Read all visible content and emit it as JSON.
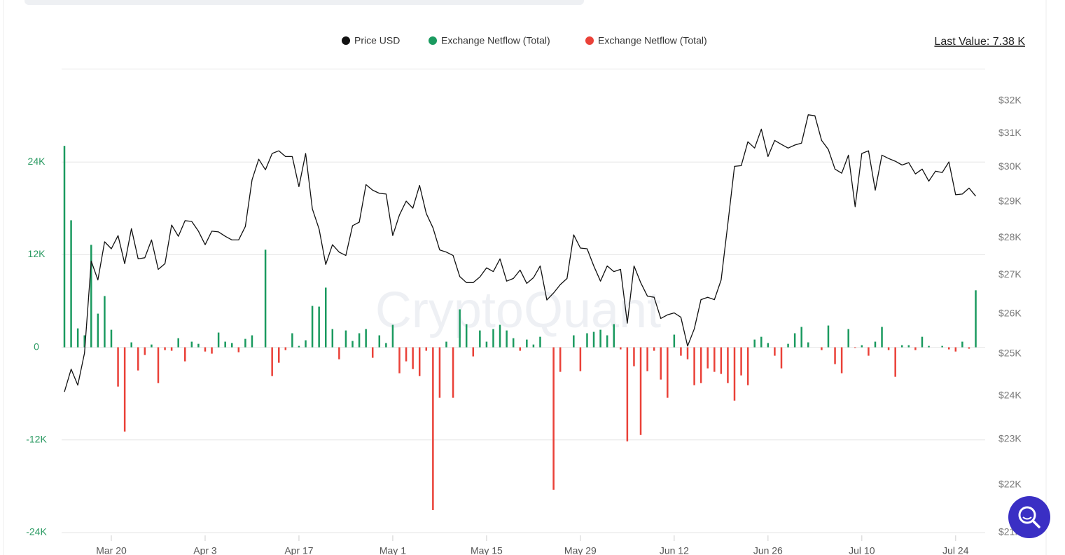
{
  "chart_data": {
    "type": "bar",
    "annotation": "Last Value: 7.38 K",
    "watermark": "CryptoQuant",
    "categories": [
      null,
      null,
      null,
      null,
      null,
      null,
      null,
      "Mar 20",
      null,
      null,
      null,
      null,
      null,
      null,
      null,
      null,
      null,
      null,
      null,
      null,
      null,
      "Apr 3",
      null,
      null,
      null,
      null,
      null,
      null,
      null,
      null,
      null,
      null,
      null,
      null,
      null,
      "Apr 17",
      null,
      null,
      null,
      null,
      null,
      null,
      null,
      null,
      null,
      null,
      null,
      null,
      null,
      "May 1",
      null,
      null,
      null,
      null,
      null,
      null,
      null,
      null,
      null,
      null,
      null,
      null,
      null,
      "May 15",
      null,
      null,
      null,
      null,
      null,
      null,
      null,
      null,
      null,
      null,
      null,
      null,
      null,
      "May 29",
      null,
      null,
      null,
      null,
      null,
      null,
      null,
      null,
      null,
      null,
      null,
      null,
      null,
      "Jun 12",
      null,
      null,
      null,
      null,
      null,
      null,
      null,
      null,
      null,
      null,
      null,
      null,
      null,
      "Jun 26",
      null,
      null,
      null,
      null,
      null,
      null,
      null,
      null,
      null,
      null,
      null,
      null,
      null,
      "Jul 10",
      null,
      null,
      null,
      null,
      null,
      null,
      null,
      null,
      null,
      null,
      null,
      null,
      null,
      "Jul 24",
      null,
      null,
      null
    ],
    "series": [
      {
        "name": "Price USD",
        "type": "line",
        "axis": "y2",
        "color": "#111111",
        "values": [
          24090,
          24630,
          24250,
          25020,
          27370,
          26870,
          27890,
          27700,
          28060,
          27300,
          28250,
          27430,
          27460,
          27940,
          27150,
          27300,
          28350,
          28040,
          28470,
          28450,
          28180,
          27810,
          28180,
          28160,
          28040,
          27940,
          27940,
          28310,
          29630,
          30230,
          29920,
          30400,
          30480,
          30310,
          30310,
          29430,
          30400,
          28800,
          28240,
          27280,
          27810,
          27610,
          27520,
          28330,
          28430,
          29490,
          29330,
          29240,
          29220,
          28060,
          28630,
          29020,
          28820,
          29470,
          28670,
          28270,
          27670,
          27610,
          27520,
          26960,
          26800,
          26800,
          26950,
          27190,
          27090,
          27430,
          26840,
          26910,
          27130,
          26780,
          26930,
          27240,
          26350,
          26530,
          26750,
          26910,
          28080,
          27720,
          27700,
          27240,
          26840,
          27240,
          27090,
          27150,
          25760,
          27240,
          26800,
          26450,
          26420,
          25880,
          25970,
          26020,
          25910,
          25190,
          25620,
          26360,
          26420,
          26360,
          26870,
          28370,
          30020,
          30040,
          30750,
          30560,
          31130,
          30310,
          30790,
          30670,
          30560,
          30650,
          30710,
          31570,
          31540,
          30790,
          30520,
          29940,
          29820,
          30350,
          28860,
          30400,
          30480,
          29330,
          30350,
          30250,
          30170,
          30060,
          30130,
          29800,
          29940,
          29590,
          29880,
          29840,
          30150,
          29200,
          29220,
          29390,
          29160
        ]
      },
      {
        "name": "Exchange Netflow (Total)",
        "color": "#1a9a5f",
        "values": [
          26090,
          16450,
          2450,
          1550,
          13270,
          4360,
          6640,
          2270,
          null,
          null,
          640,
          null,
          null,
          360,
          null,
          null,
          null,
          1180,
          null,
          730,
          450,
          null,
          null,
          1910,
          730,
          550,
          null,
          1090,
          1550,
          null,
          12640,
          null,
          null,
          null,
          1820,
          180,
          910,
          5360,
          5270,
          7730,
          2360,
          null,
          2180,
          820,
          1820,
          2360,
          null,
          1550,
          550,
          2910,
          null,
          null,
          null,
          null,
          null,
          null,
          null,
          730,
          null,
          4910,
          3000,
          null,
          2180,
          730,
          2360,
          2910,
          2180,
          1180,
          null,
          1000,
          360,
          1360,
          null,
          null,
          null,
          null,
          1550,
          null,
          1820,
          2000,
          2270,
          1550,
          3000,
          null,
          null,
          null,
          null,
          null,
          null,
          null,
          null,
          1640,
          null,
          null,
          null,
          null,
          null,
          null,
          null,
          null,
          null,
          null,
          null,
          1000,
          1360,
          550,
          null,
          null,
          450,
          1820,
          2640,
          640,
          null,
          null,
          2820,
          null,
          null,
          2360,
          null,
          270,
          null,
          730,
          2640,
          null,
          null,
          270,
          270,
          null,
          1360,
          180,
          null,
          180,
          null,
          null,
          730,
          null,
          7380
        ]
      },
      {
        "name": "Exchange Netflow (Total)",
        "color": "#ea4138",
        "values": [
          null,
          null,
          null,
          null,
          null,
          null,
          null,
          null,
          -5090,
          -10910,
          null,
          -3000,
          -1000,
          null,
          -4640,
          -360,
          -450,
          null,
          -1820,
          null,
          null,
          -550,
          -820,
          null,
          null,
          null,
          -640,
          null,
          null,
          null,
          null,
          -3730,
          -2000,
          -360,
          null,
          null,
          null,
          null,
          null,
          null,
          null,
          -1550,
          null,
          null,
          null,
          null,
          -1360,
          null,
          null,
          null,
          -3360,
          -1820,
          -2820,
          -3730,
          -450,
          -21090,
          -6540,
          null,
          -6540,
          null,
          null,
          -1180,
          null,
          null,
          null,
          null,
          null,
          null,
          -450,
          null,
          null,
          null,
          null,
          -18450,
          -3180,
          null,
          null,
          -3090,
          null,
          null,
          null,
          null,
          null,
          -270,
          -12180,
          -2450,
          -11360,
          -3090,
          -450,
          -4180,
          -6540,
          null,
          -1090,
          -1550,
          -4910,
          -4640,
          -2730,
          -3180,
          -3450,
          -4640,
          -6910,
          -3640,
          -4910,
          null,
          null,
          null,
          -1090,
          -2730,
          null,
          null,
          null,
          null,
          null,
          -360,
          null,
          -2180,
          -3360,
          null,
          -90,
          null,
          -1090,
          null,
          null,
          -360,
          -3820,
          null,
          null,
          -360,
          null,
          null,
          null,
          null,
          -270,
          -550,
          null,
          -180,
          null
        ]
      }
    ],
    "ylim": [
      -24000,
      36000
    ],
    "yticks": [
      {
        "value": -24000,
        "label": "-24K"
      },
      {
        "value": -12000,
        "label": "-12K"
      },
      0,
      {
        "value": 12000,
        "label": "12K"
      },
      {
        "value": 24000,
        "label": "24K"
      }
    ],
    "y2lim": [
      21000,
      33000
    ],
    "y2log": true,
    "y2ticks": [
      {
        "value": 21000,
        "label": "$21K"
      },
      {
        "value": 22000,
        "label": "$22K"
      },
      {
        "value": 23000,
        "label": "$23K"
      },
      {
        "value": 24000,
        "label": "$24K"
      },
      {
        "value": 25000,
        "label": "$25K"
      },
      {
        "value": 26000,
        "label": "$26K"
      },
      {
        "value": 27000,
        "label": "$27K"
      },
      {
        "value": 28000,
        "label": "$28K"
      },
      {
        "value": 29000,
        "label": "$29K"
      },
      {
        "value": 30000,
        "label": "$30K"
      },
      {
        "value": 31000,
        "label": "$31K"
      },
      {
        "value": 32000,
        "label": "$32K"
      }
    ],
    "grid": true
  }
}
